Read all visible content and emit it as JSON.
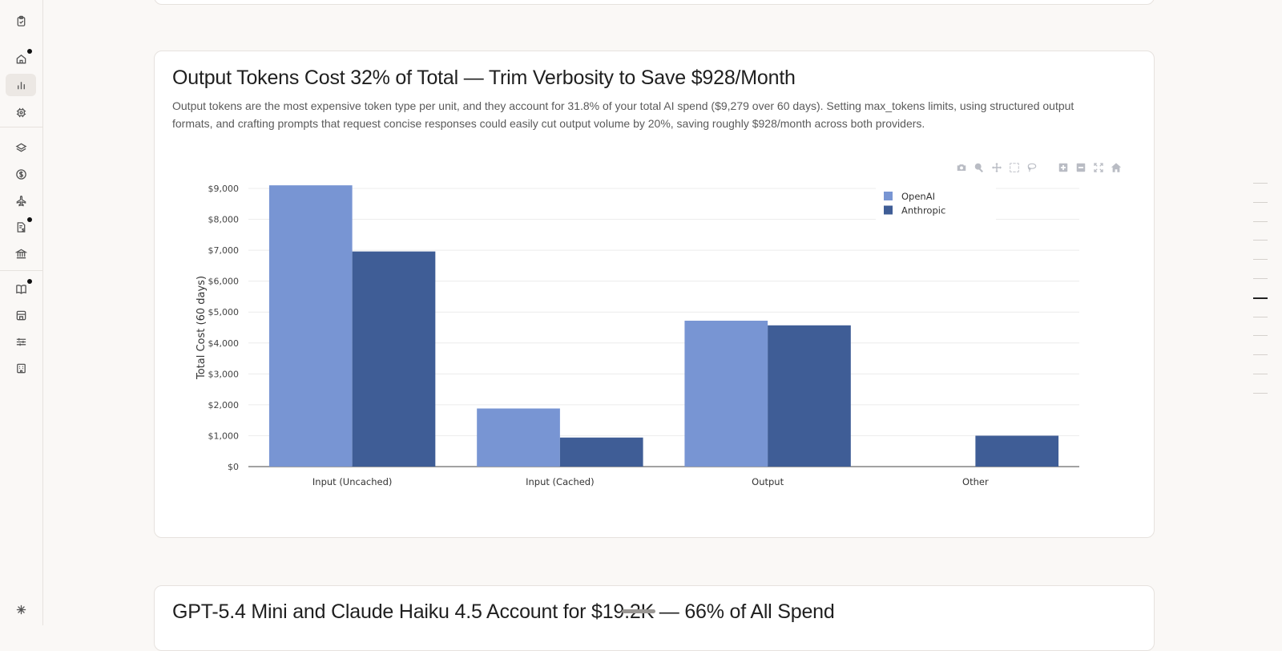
{
  "sidebar": {
    "items": [
      {
        "icon": "clipboard-icon",
        "active": false,
        "badge": false
      },
      {
        "icon": "home-icon",
        "active": false,
        "badge": true
      },
      {
        "icon": "bar-chart-icon",
        "active": true,
        "badge": false
      },
      {
        "icon": "cpu-icon",
        "active": false,
        "badge": false
      },
      {
        "icon": "layers-icon",
        "active": false,
        "badge": false
      },
      {
        "icon": "dollar-icon",
        "active": false,
        "badge": false
      },
      {
        "icon": "plane-icon",
        "active": false,
        "badge": false
      },
      {
        "icon": "invoice-icon",
        "active": false,
        "badge": true
      },
      {
        "icon": "bank-icon",
        "active": false,
        "badge": false
      },
      {
        "icon": "book-icon",
        "active": false,
        "badge": true
      },
      {
        "icon": "store-icon",
        "active": false,
        "badge": false
      },
      {
        "icon": "sliders-icon",
        "active": false,
        "badge": false
      },
      {
        "icon": "building-icon",
        "active": false,
        "badge": false
      },
      {
        "icon": "sparkle-icon",
        "active": false,
        "badge": false
      }
    ]
  },
  "insight": {
    "title": "Output Tokens Cost 32% of Total — Trim Verbosity to Save $928/Month",
    "description": "Output tokens are the most expensive token type per unit, and they account for 31.8% of your total AI spend ($9,279 over 60 days). Setting max_tokens limits, using structured output formats, and crafting prompts that request concise responses could easily cut output volume by 20%, saving roughly $928/month across both providers."
  },
  "next_insight": {
    "title": "GPT-5.4 Mini and Claude Haiku 4.5 Account for $19.2K — 66% of All Spend"
  },
  "modebar": [
    "camera-icon",
    "zoom-icon",
    "pan-icon",
    "box-select-icon",
    "lasso-icon",
    "zoom-in-icon",
    "zoom-out-icon",
    "autoscale-icon",
    "reset-axes-icon"
  ],
  "chart_data": {
    "type": "bar",
    "categories": [
      "Input (Uncached)",
      "Input (Cached)",
      "Output",
      "Other"
    ],
    "series": [
      {
        "name": "OpenAI",
        "values": [
          9100,
          1880,
          4720,
          0
        ],
        "color": "#7895d3"
      },
      {
        "name": "Anthropic",
        "values": [
          6960,
          940,
          4570,
          1000
        ],
        "color": "#3f5d96"
      }
    ],
    "ylabel": "Total Cost (60 days)",
    "ylim": [
      0,
      9000
    ],
    "yticks": [
      0,
      1000,
      2000,
      3000,
      4000,
      5000,
      6000,
      7000,
      8000,
      9000
    ],
    "ytick_labels": [
      "$0",
      "$1,000",
      "$2,000",
      "$3,000",
      "$4,000",
      "$5,000",
      "$6,000",
      "$7,000",
      "$8,000",
      "$9,000"
    ],
    "grid": true,
    "legend": "top-right"
  }
}
